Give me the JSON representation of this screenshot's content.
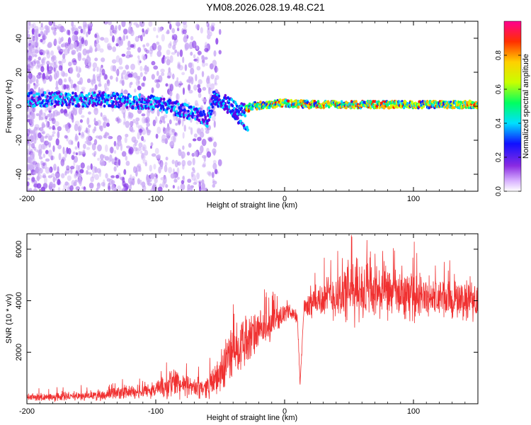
{
  "title": "YM08.2026.028.19.48.C21",
  "chart_data": [
    {
      "type": "heatmap",
      "name": "spectrogram",
      "xlabel": "Height of straight line (km)",
      "ylabel": "Frequency (Hz)",
      "xlim": [
        -200,
        150
      ],
      "ylim": [
        -50,
        50
      ],
      "xticks": [
        -200,
        -100,
        0,
        100
      ],
      "xtick_labels": [
        "-200",
        "-100",
        "0",
        "100"
      ],
      "yticks": [
        -40,
        -20,
        0,
        20,
        40
      ],
      "ytick_labels": [
        "-40",
        "-20",
        "0",
        "20",
        "40"
      ],
      "track": {
        "x": [
          -200,
          -170,
          -140,
          -120,
          -100,
          -80,
          -65,
          -60,
          -55,
          -45,
          -35,
          -25,
          -10,
          0,
          20,
          50,
          80,
          110,
          150
        ],
        "y": [
          4,
          4,
          4,
          3,
          2,
          -2,
          -6,
          -8,
          5,
          2,
          -3,
          0,
          1,
          2,
          1,
          1,
          1,
          1,
          1
        ]
      },
      "colorbar": {
        "label": "Normalized spectral amplitude",
        "range": [
          0,
          1
        ],
        "ticks": [
          0,
          0.2,
          0.4,
          0.6,
          0.8
        ],
        "tick_labels": [
          "0.0",
          "0.2",
          "0.4",
          "0.6",
          "0.8"
        ],
        "colormap": "rainbow"
      }
    },
    {
      "type": "line",
      "name": "snr",
      "xlabel": "Height of straight line (km)",
      "ylabel": "SNR (10 * v/v)",
      "xlim": [
        -200,
        150
      ],
      "ylim": [
        0,
        6600
      ],
      "xticks": [
        -200,
        -100,
        0,
        100
      ],
      "xtick_labels": [
        "-200",
        "-100",
        "0",
        "100"
      ],
      "yticks": [
        2000,
        4000,
        6000
      ],
      "ytick_labels": [
        "2000",
        "4000",
        "6000"
      ],
      "color": "#f03030",
      "envelope": {
        "x": [
          -200,
          -180,
          -160,
          -140,
          -120,
          -100,
          -90,
          -85,
          -80,
          -70,
          -60,
          -50,
          -45,
          -40,
          -35,
          -30,
          -25,
          -20,
          -15,
          -10,
          -5,
          0,
          5,
          10,
          12,
          15,
          20,
          30,
          40,
          50,
          60,
          70,
          80,
          90,
          100,
          110,
          120,
          130,
          140,
          150
        ],
        "center": [
          250,
          250,
          300,
          350,
          450,
          550,
          650,
          900,
          700,
          600,
          650,
          1100,
          1700,
          2100,
          2300,
          2400,
          2600,
          2800,
          2900,
          3100,
          3350,
          3500,
          3600,
          3300,
          700,
          3700,
          3900,
          4100,
          4200,
          4300,
          4400,
          4300,
          4300,
          4200,
          4200,
          4100,
          4100,
          4000,
          4000,
          4000
        ],
        "amp": [
          200,
          200,
          200,
          250,
          300,
          400,
          600,
          900,
          500,
          450,
          500,
          900,
          1300,
          1400,
          1300,
          1200,
          1100,
          900,
          800,
          700,
          500,
          400,
          300,
          300,
          200,
          400,
          700,
          900,
          1100,
          1500,
          1500,
          1400,
          1200,
          1100,
          1100,
          1000,
          900,
          900,
          900,
          900
        ]
      }
    }
  ]
}
